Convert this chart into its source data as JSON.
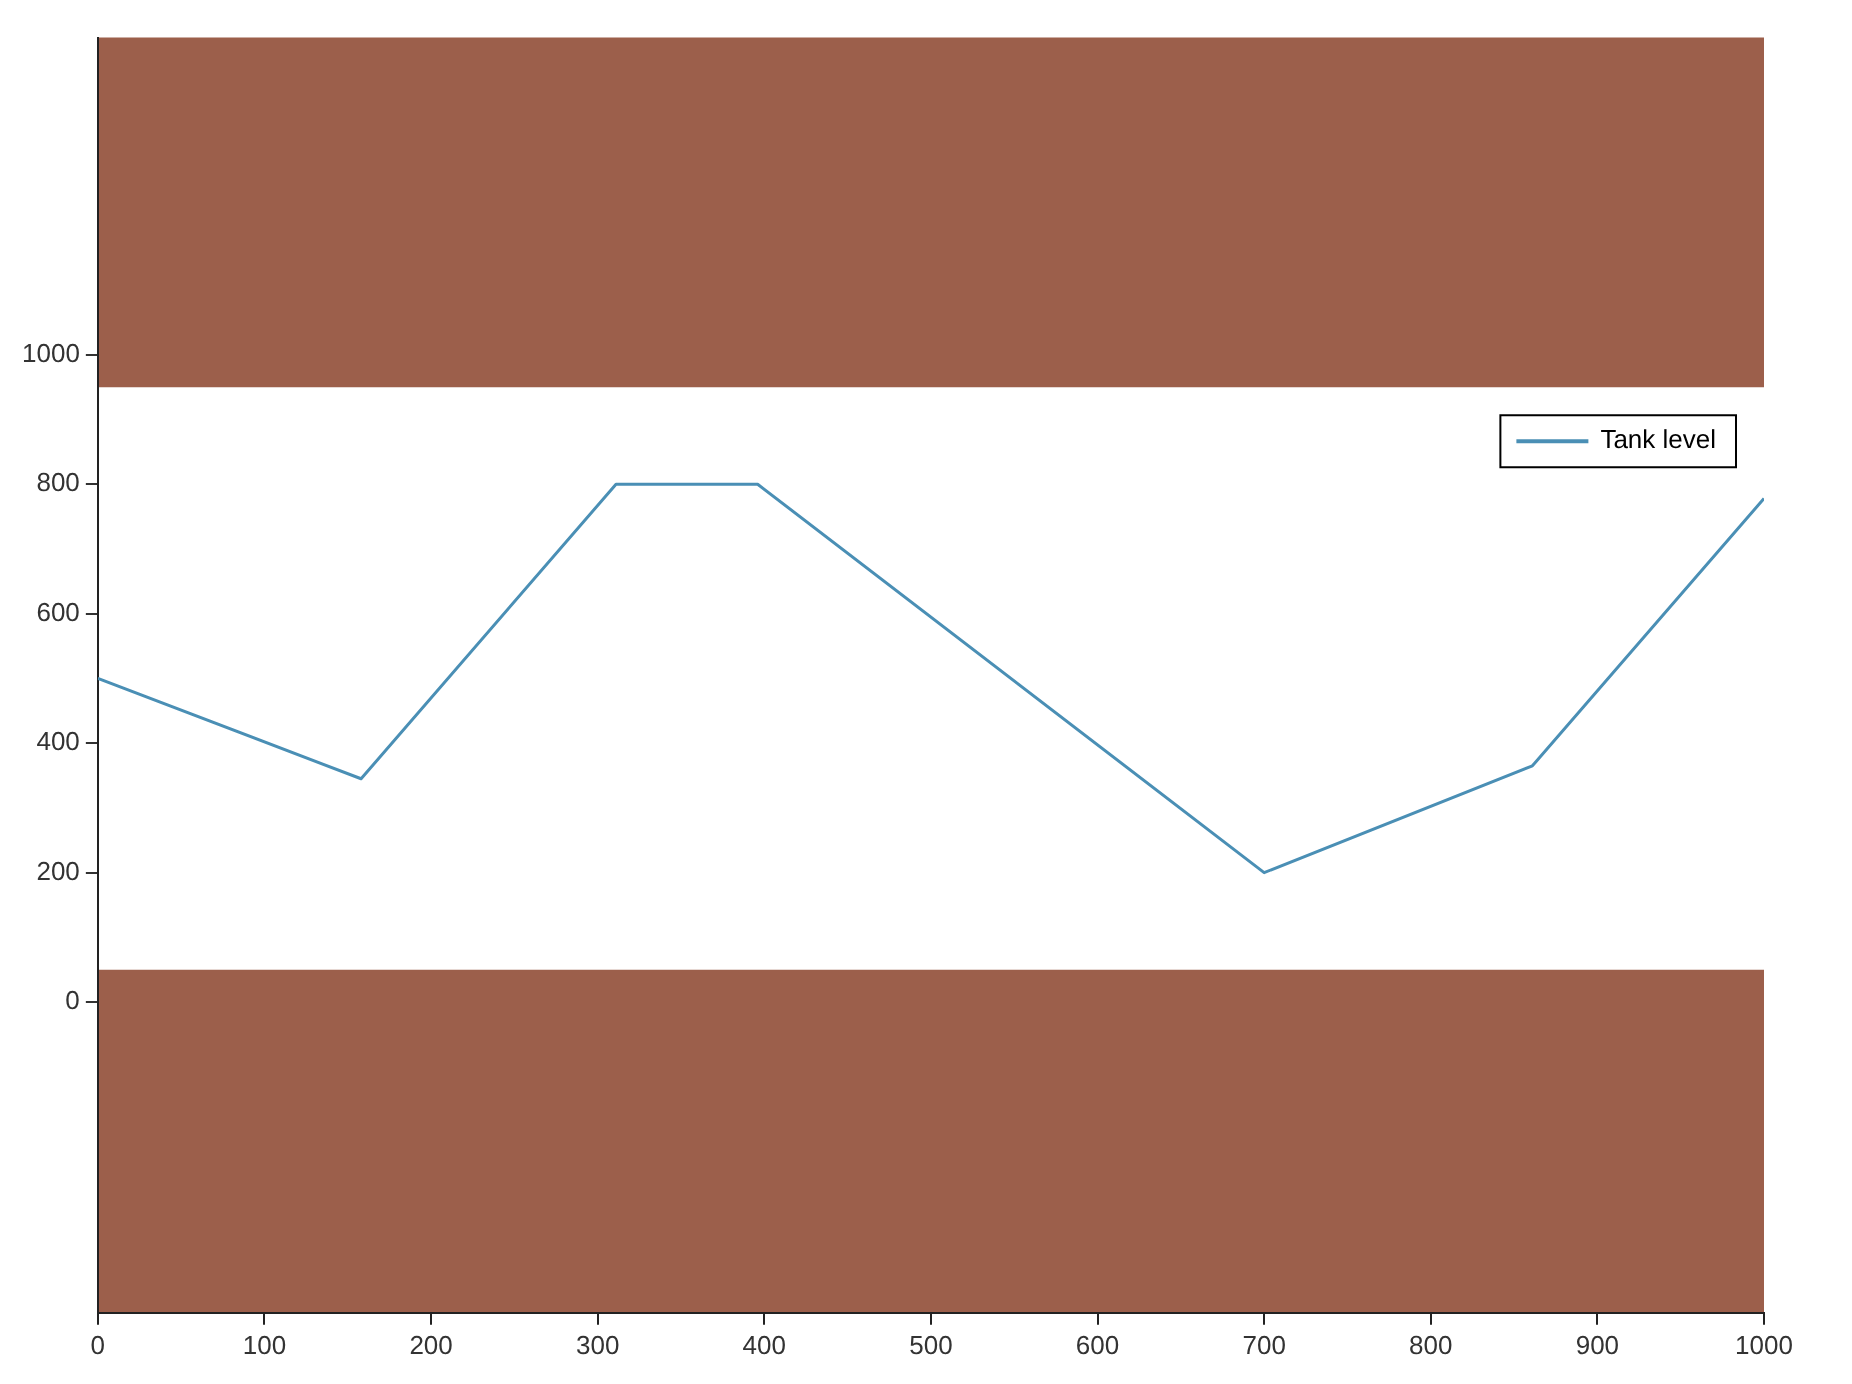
{
  "chart_data": {
    "type": "line",
    "x": [
      0,
      158,
      311,
      396,
      700,
      861,
      1000
    ],
    "series": [
      {
        "name": "Tank level",
        "color": "#4a8fb5",
        "values": [
          500,
          345,
          800,
          800,
          200,
          365,
          778
        ]
      }
    ],
    "xlim": [
      0,
      1000
    ],
    "xticks": [
      0,
      100,
      200,
      300,
      400,
      500,
      600,
      700,
      800,
      900,
      1000
    ],
    "ylim": [
      -480,
      1490
    ],
    "yticks": [
      0,
      200,
      400,
      600,
      800,
      1000
    ],
    "bands": [
      {
        "axis": "y",
        "from": 950,
        "to": 1490,
        "color": "#9c5f4b"
      },
      {
        "axis": "y",
        "from": -480,
        "to": 50,
        "color": "#9c5f4b"
      }
    ],
    "legend": "top right",
    "grid": false,
    "marker": "none",
    "line_style": "solid"
  }
}
